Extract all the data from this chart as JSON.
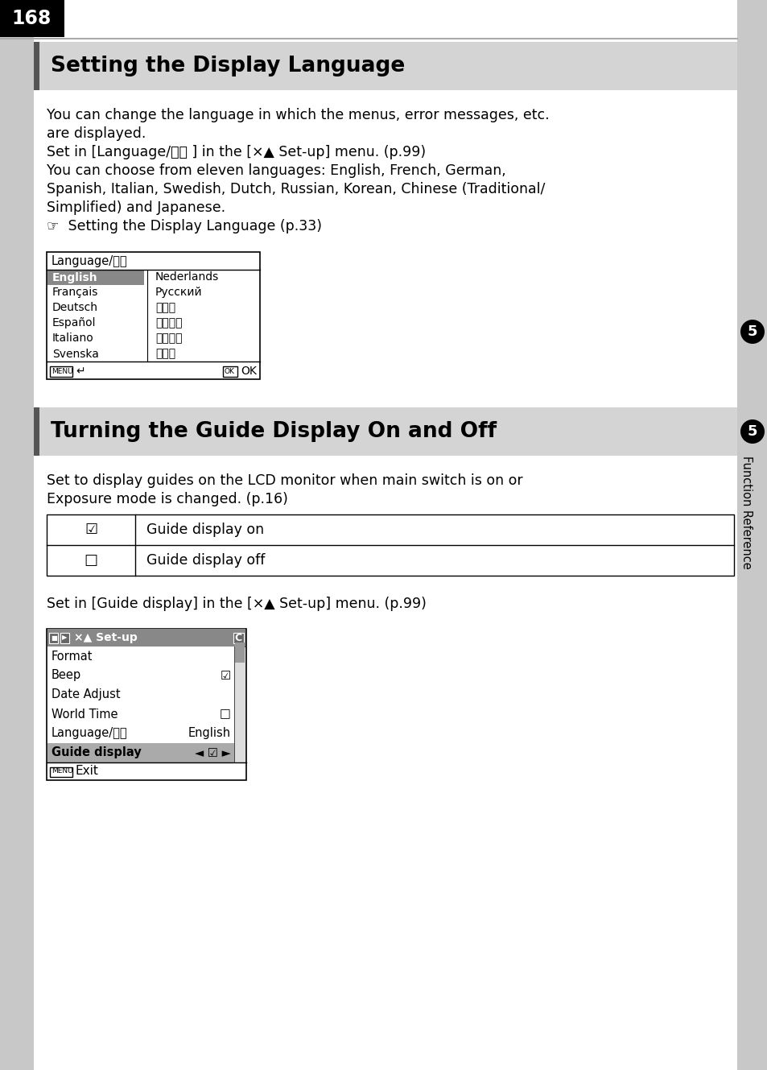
{
  "page_number": "168",
  "bg_color": "#ffffff",
  "sidebar_bg": "#c8c8c8",
  "sidebar_right_bg": "#c8c8c8",
  "section1_title": "Setting the Display Language",
  "section1_body_line1": "You can change the language in which the menus, error messages, etc.",
  "section1_body_line2": "are displayed.",
  "section1_body_line3": "Set in [Language/言語 ] in the [×▲ Set-up] menu. (p.99)",
  "section1_body_line4": "You can choose from eleven languages: English, French, German,",
  "section1_body_line5": "Spanish, Italian, Swedish, Dutch, Russian, Korean, Chinese (Traditional/",
  "section1_body_line6": "Simplified) and Japanese.",
  "section1_body_line7": "☞  Setting the Display Language (p.33)",
  "lang_menu_title": "Language/言語",
  "lang_menu_left": [
    "English",
    "Français",
    "Deutsch",
    "Español",
    "Italiano",
    "Svenska"
  ],
  "lang_menu_right": [
    "Nederlands",
    "Русский",
    "한국어",
    "中文繁體",
    "中文简体",
    "日本語"
  ],
  "section2_title": "Turning the Guide Display On and Off",
  "section2_body_line1": "Set to display guides on the LCD monitor when main switch is on or",
  "section2_body_line2": "Exposure mode is changed. (p.16)",
  "guide_row1_sym": "☑",
  "guide_row1_text": "Guide display on",
  "guide_row2_sym": "□",
  "guide_row2_text": "Guide display off",
  "section2_body2": "Set in [Guide display] in the [×▲ Set-up] menu. (p.99)",
  "setup_menu_items": [
    [
      "Format",
      ""
    ],
    [
      "Beep",
      "☑"
    ],
    [
      "Date Adjust",
      ""
    ],
    [
      "World Time",
      "□"
    ],
    [
      "Language/言語",
      "English"
    ],
    [
      "Guide display",
      "◄ ☑ ►"
    ]
  ],
  "sidebar_label": "Function Reference",
  "sidebar_number": "5",
  "header_gray": "#d4d4d4",
  "header_dark": "#404040",
  "menu_selected_gray": "#888888",
  "menu_highlight_gray": "#aaaaaa"
}
